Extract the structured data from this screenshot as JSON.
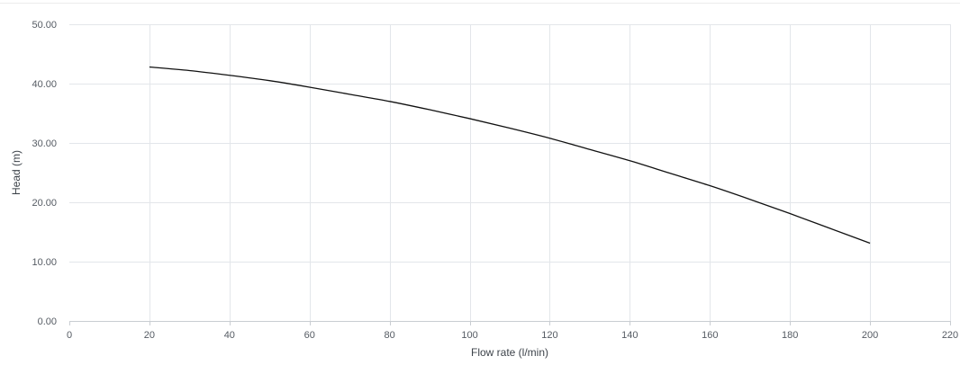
{
  "chart_data": {
    "type": "line",
    "title": "",
    "xlabel": "Flow rate (l/min)",
    "ylabel": "Head (m)",
    "xlim": [
      0,
      220
    ],
    "ylim": [
      0,
      50
    ],
    "x_ticks": [
      0,
      20,
      40,
      60,
      80,
      100,
      120,
      140,
      160,
      180,
      200,
      220
    ],
    "y_ticks": [
      "0.00",
      "10.00",
      "20.00",
      "30.00",
      "40.00",
      "50.00"
    ],
    "grid": true,
    "legend": "none",
    "series": [
      {
        "color": "#111111",
        "x": [
          20,
          30,
          40,
          50,
          60,
          70,
          80,
          90,
          100,
          110,
          120,
          130,
          140,
          150,
          160,
          170,
          180,
          190,
          200
        ],
        "y": [
          42.8,
          42.2,
          41.4,
          40.5,
          39.4,
          38.2,
          37.0,
          35.6,
          34.1,
          32.5,
          30.8,
          28.9,
          27.0,
          24.9,
          22.8,
          20.5,
          18.1,
          15.6,
          13.1
        ]
      }
    ]
  }
}
